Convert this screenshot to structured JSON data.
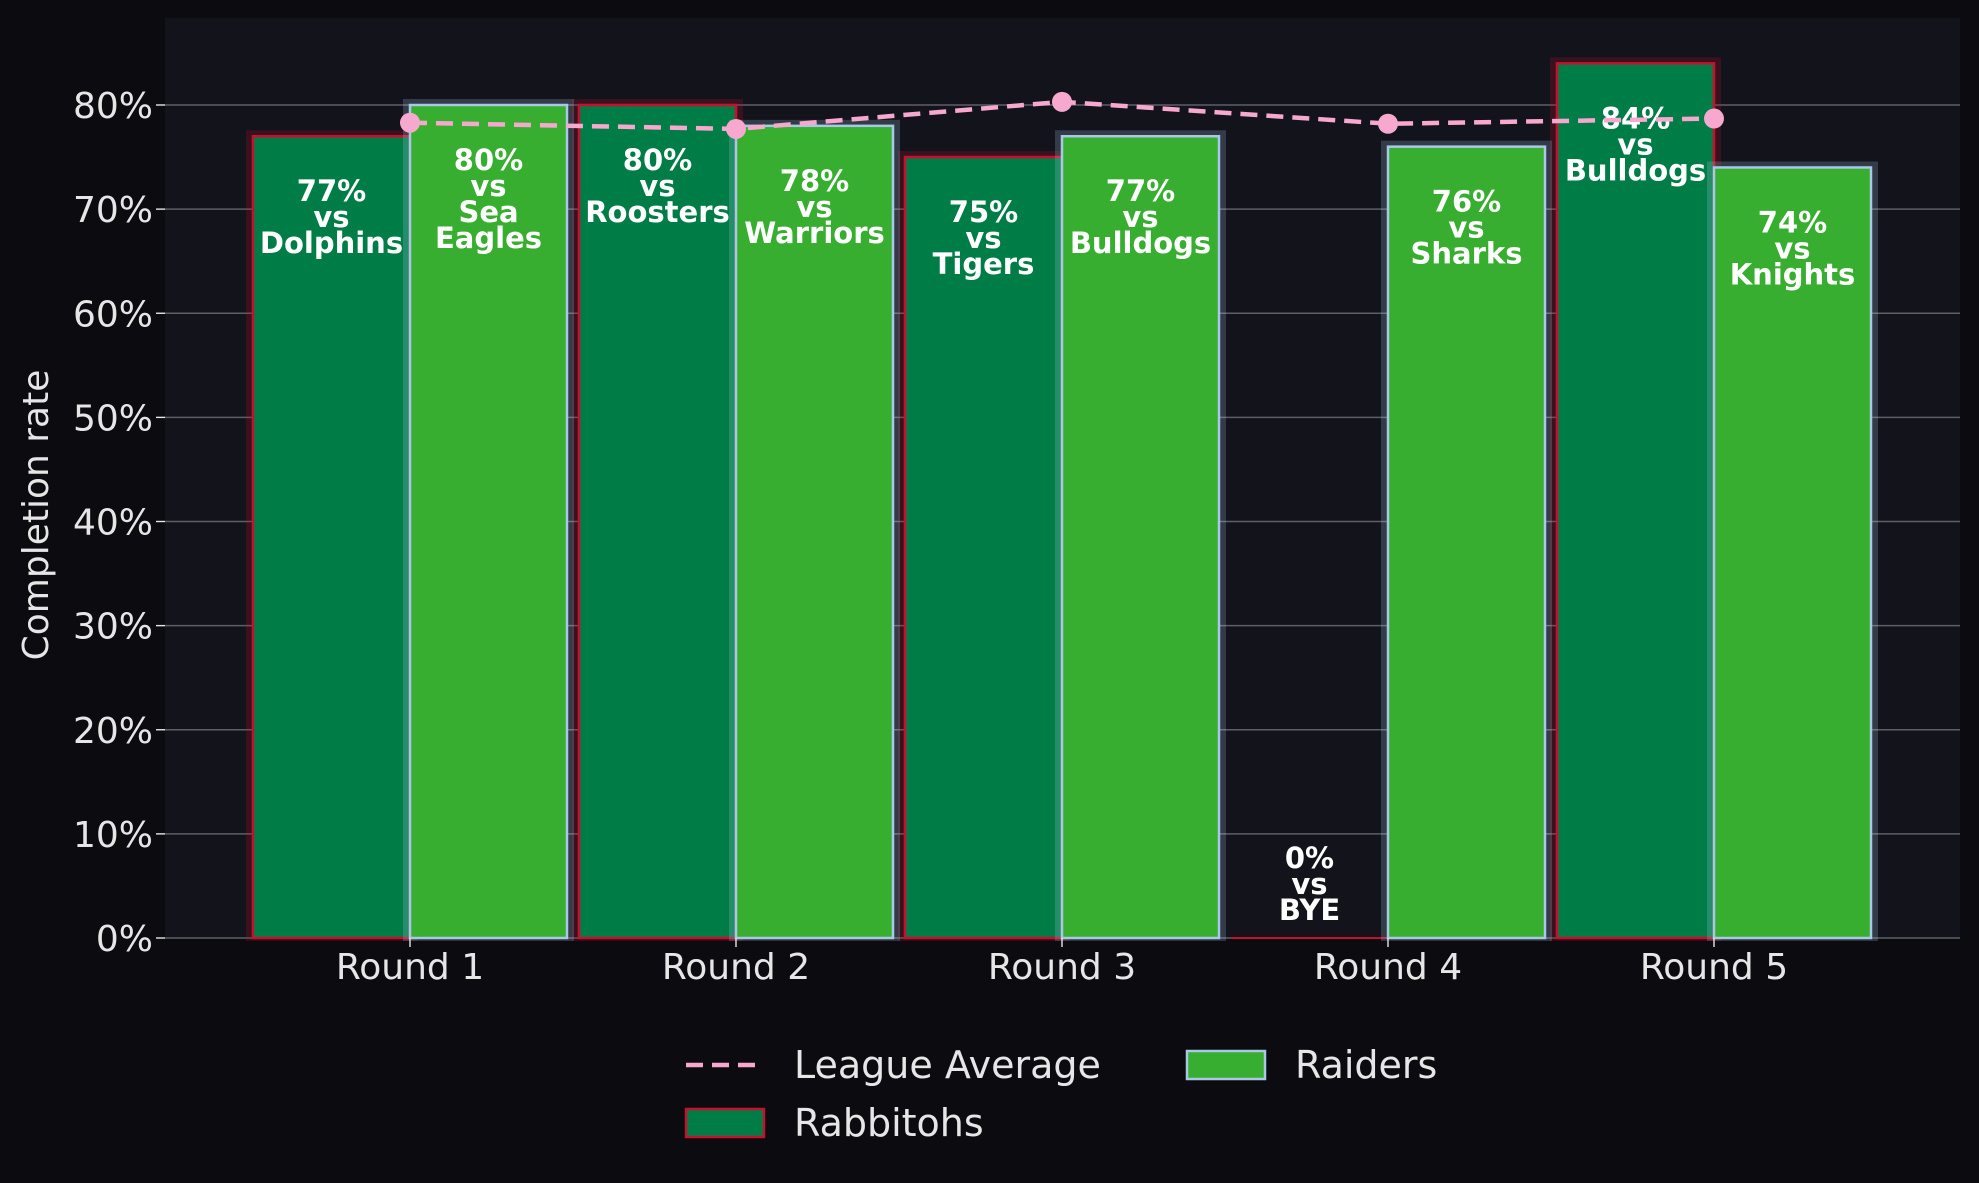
{
  "chart_data": {
    "type": "bar",
    "title": "",
    "xlabel": "",
    "ylabel": "Completion rate",
    "ylim": [
      0,
      88
    ],
    "yticks": [
      0,
      10,
      20,
      30,
      40,
      50,
      60,
      70,
      80
    ],
    "ytick_suffix": "%",
    "grid": true,
    "categories": [
      "Round 1",
      "Round 2",
      "Round 3",
      "Round 4",
      "Round 5"
    ],
    "series": [
      {
        "name": "Rabbitohs",
        "type": "bar",
        "color": "#007d46",
        "edge_color": "#c8102e",
        "values": [
          77,
          80,
          75,
          0,
          84
        ],
        "labels": [
          [
            "77%",
            "vs",
            "Dolphins"
          ],
          [
            "80%",
            "vs",
            "Roosters"
          ],
          [
            "75%",
            "vs",
            "Tigers"
          ],
          [
            "0%",
            "vs",
            "BYE"
          ],
          [
            "84%",
            "vs",
            "Bulldogs"
          ]
        ]
      },
      {
        "name": "Raiders",
        "type": "bar",
        "color": "#37ae2f",
        "edge_color": "#a9c8e6",
        "values": [
          80,
          78,
          77,
          76,
          74
        ],
        "labels": [
          [
            "80%",
            "vs",
            "Sea",
            "Eagles"
          ],
          [
            "78%",
            "vs",
            "Warriors"
          ],
          [
            "77%",
            "vs",
            "Bulldogs"
          ],
          [
            "76%",
            "vs",
            "Sharks"
          ],
          [
            "74%",
            "vs",
            "Knights"
          ]
        ]
      },
      {
        "name": "League Average",
        "type": "line",
        "style": "dashed",
        "marker": "circle",
        "color": "#f7a8cf",
        "values": [
          78.3,
          77.7,
          80.3,
          78.2,
          78.7
        ]
      }
    ],
    "legend": {
      "placement": "bottom-center",
      "columns": 2,
      "order": [
        "League Average",
        "Rabbitohs",
        "Raiders"
      ]
    },
    "colors": {
      "page_background": "#0b0b10",
      "plot_background": "#12131b",
      "grid": "#5e5f66",
      "text": "#e6e6e6"
    }
  }
}
